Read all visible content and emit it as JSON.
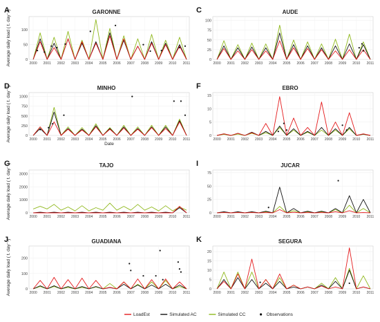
{
  "chart_data": [
    {
      "letter": "A",
      "title": "GARONNE",
      "type": "line",
      "ylabel": "Average daily load ( t. day⁻¹)",
      "xlabel": "",
      "yticks": [
        0,
        50,
        100
      ],
      "ylim": [
        0,
        145
      ],
      "x": [
        2000,
        2011
      ],
      "peaks": {
        "LoadEst": [
          0,
          60,
          0,
          40,
          0,
          70,
          0,
          60,
          0,
          55,
          0,
          80,
          0,
          70,
          0,
          45,
          0,
          55,
          0,
          50,
          0,
          45,
          0
        ],
        "Simulated AC": [
          0,
          70,
          0,
          55,
          0,
          70,
          0,
          55,
          0,
          60,
          0,
          90,
          0,
          65,
          0,
          45,
          0,
          60,
          0,
          55,
          0,
          50,
          0
        ],
        "Simulated CC": [
          0,
          90,
          0,
          75,
          0,
          95,
          0,
          65,
          0,
          135,
          0,
          105,
          0,
          80,
          0,
          70,
          0,
          85,
          0,
          65,
          0,
          75,
          0
        ]
      },
      "obs": [
        [
          2000.3,
          30
        ],
        [
          2000.8,
          25
        ],
        [
          2001.3,
          45
        ],
        [
          2001.7,
          40
        ],
        [
          2002.3,
          52
        ],
        [
          2004.1,
          95
        ],
        [
          2005.9,
          115
        ],
        [
          2007.9,
          50
        ],
        [
          2008.4,
          28
        ],
        [
          2009.2,
          30
        ],
        [
          2010.5,
          40
        ],
        [
          2010.9,
          45
        ]
      ]
    },
    {
      "letter": "C",
      "title": "AUDE",
      "type": "line",
      "ylabel": "",
      "xlabel": "",
      "yticks": [
        0,
        25,
        50,
        75,
        100
      ],
      "ylim": [
        0,
        110
      ],
      "x": [
        2000,
        2011
      ],
      "peaks": {
        "LoadEst": [
          0,
          28,
          0,
          22,
          0,
          25,
          0,
          22,
          0,
          48,
          0,
          30,
          0,
          28,
          0,
          25,
          0,
          22,
          0,
          25,
          0,
          25,
          0
        ],
        "Simulated AC": [
          0,
          35,
          0,
          30,
          0,
          32,
          0,
          30,
          0,
          68,
          0,
          38,
          0,
          35,
          0,
          30,
          0,
          35,
          0,
          40,
          0,
          38,
          0
        ],
        "Simulated CC": [
          0,
          48,
          0,
          38,
          0,
          42,
          0,
          40,
          0,
          88,
          0,
          50,
          0,
          45,
          0,
          40,
          0,
          52,
          0,
          65,
          0,
          45,
          0
        ]
      },
      "obs": [
        [
          2010.2,
          30
        ],
        [
          2010.4,
          40
        ],
        [
          2010.5,
          22
        ]
      ]
    },
    {
      "letter": "D",
      "title": "MINHO",
      "type": "line",
      "ylabel": "Average daily load ( t. day⁻¹)",
      "xlabel": "Date",
      "yticks": [
        0,
        250,
        500,
        750,
        1000
      ],
      "ylim": [
        0,
        1100
      ],
      "x": [
        2000,
        2011
      ],
      "peaks": {
        "LoadEst": [
          0,
          220,
          0,
          350,
          0,
          160,
          0,
          140,
          0,
          220,
          0,
          160,
          0,
          190,
          0,
          160,
          0,
          200,
          0,
          180,
          0,
          350,
          0
        ],
        "Simulated AC": [
          0,
          180,
          0,
          600,
          0,
          180,
          0,
          160,
          0,
          250,
          0,
          180,
          0,
          220,
          0,
          180,
          0,
          220,
          0,
          220,
          0,
          380,
          0
        ],
        "Simulated CC": [
          0,
          220,
          0,
          720,
          0,
          220,
          0,
          200,
          0,
          300,
          0,
          200,
          0,
          260,
          0,
          220,
          0,
          260,
          0,
          260,
          0,
          420,
          0
        ]
      },
      "obs": [
        [
          2000.5,
          150
        ],
        [
          2001.1,
          200
        ],
        [
          2001.4,
          300
        ],
        [
          2002.2,
          520
        ],
        [
          2007.1,
          1000
        ],
        [
          2010.1,
          880
        ],
        [
          2010.6,
          880
        ],
        [
          2010.9,
          520
        ]
      ]
    },
    {
      "letter": "F",
      "title": "EBRO",
      "type": "line",
      "ylabel": "",
      "xlabel": "",
      "yticks": [
        0,
        5,
        10,
        15
      ],
      "ylim": [
        0,
        16
      ],
      "x": [
        2000,
        2011
      ],
      "peaks": {
        "LoadEst": [
          0,
          0.6,
          0,
          0.8,
          0,
          1.0,
          0,
          4.5,
          0,
          14.5,
          0,
          6.5,
          0,
          3.0,
          0,
          12.5,
          0,
          5.0,
          0,
          8.5,
          0,
          0.6,
          0
        ],
        "Simulated AC": [
          0,
          0.6,
          0,
          0.8,
          0,
          1.2,
          0,
          1.5,
          0,
          3.5,
          0,
          2.5,
          0,
          1.5,
          0,
          3.0,
          0,
          2.5,
          0,
          3.0,
          0,
          0.5,
          0
        ],
        "Simulated CC": [
          0,
          0.4,
          0,
          0.5,
          0,
          0.8,
          0,
          1.0,
          0,
          3.0,
          0,
          2.0,
          0,
          1.2,
          0,
          2.0,
          0,
          2.0,
          0,
          2.5,
          0,
          0.4,
          0
        ]
      },
      "obs": [
        [
          2004.8,
          4.5
        ],
        [
          2009.0,
          3.8
        ],
        [
          2009.3,
          2.0
        ],
        [
          2005.0,
          2.0
        ],
        [
          2004.4,
          1.5
        ]
      ]
    },
    {
      "letter": "G",
      "title": "TAJO",
      "type": "line",
      "ylabel": "Average daily load ( t. day⁻¹)",
      "xlabel": "",
      "yticks": [
        0,
        1000,
        2000,
        3000
      ],
      "ylim": [
        0,
        3300
      ],
      "x": [
        2000,
        2011
      ],
      "peaks": {
        "LoadEst": [
          0,
          0,
          0,
          0,
          0,
          0,
          0,
          0,
          0,
          0,
          0,
          0,
          0,
          0,
          0,
          0,
          0,
          0,
          0,
          0,
          0,
          500,
          0
        ],
        "Simulated AC": [
          0,
          50,
          0,
          50,
          0,
          50,
          0,
          50,
          0,
          50,
          0,
          50,
          0,
          50,
          0,
          50,
          0,
          50,
          0,
          50,
          0,
          400,
          0
        ],
        "Simulated CC": [
          300,
          500,
          300,
          650,
          200,
          450,
          150,
          550,
          150,
          400,
          200,
          750,
          200,
          500,
          200,
          650,
          200,
          450,
          150,
          550,
          150,
          450,
          200
        ]
      },
      "obs": []
    },
    {
      "letter": "I",
      "title": "JUCAR",
      "type": "line",
      "ylabel": "",
      "xlabel": "",
      "yticks": [
        0,
        25,
        50,
        75
      ],
      "ylim": [
        0,
        80
      ],
      "x": [
        2000,
        2011
      ],
      "peaks": {
        "LoadEst": [
          0,
          0.5,
          0,
          0.5,
          0,
          0.5,
          0,
          0.5,
          0,
          6,
          0,
          1,
          0,
          0.5,
          0,
          0.5,
          0,
          2,
          0,
          4,
          0,
          0.5,
          0
        ],
        "Simulated AC": [
          0,
          2,
          0,
          2,
          0,
          2,
          0,
          3,
          0,
          48,
          0,
          8,
          0,
          3,
          0,
          3,
          0,
          8,
          0,
          32,
          0,
          25,
          0
        ],
        "Simulated CC": [
          0,
          1,
          0,
          1,
          0,
          1,
          0,
          2,
          0,
          12,
          0,
          4,
          0,
          2,
          0,
          2,
          0,
          6,
          0,
          14,
          0,
          8,
          0
        ]
      },
      "obs": [
        [
          2008.7,
          60
        ],
        [
          2003.7,
          10
        ]
      ]
    },
    {
      "letter": "J",
      "title": "GUADIANA",
      "type": "line",
      "ylabel": "Average daily load ( t. day⁻¹)",
      "xlabel": "",
      "yticks": [
        0,
        100,
        200
      ],
      "ylim": [
        0,
        280
      ],
      "x": [
        2000,
        2011
      ],
      "peaks": {
        "LoadEst": [
          0,
          55,
          0,
          75,
          0,
          60,
          0,
          70,
          0,
          55,
          0,
          10,
          0,
          45,
          0,
          65,
          0,
          60,
          0,
          65,
          0,
          45,
          0
        ],
        "Simulated AC": [
          0,
          20,
          0,
          20,
          0,
          15,
          0,
          15,
          0,
          15,
          0,
          8,
          0,
          30,
          0,
          25,
          0,
          25,
          0,
          30,
          0,
          25,
          0
        ],
        "Simulated CC": [
          0,
          15,
          0,
          15,
          0,
          10,
          0,
          10,
          0,
          12,
          0,
          35,
          0,
          45,
          0,
          30,
          0,
          45,
          0,
          55,
          0,
          15,
          0
        ]
      },
      "obs": [
        [
          2006.9,
          165
        ],
        [
          2007.0,
          120
        ],
        [
          2007.9,
          85
        ],
        [
          2008.8,
          85
        ],
        [
          2009.1,
          250
        ],
        [
          2009.3,
          60
        ],
        [
          2010.4,
          175
        ],
        [
          2010.5,
          130
        ],
        [
          2010.6,
          110
        ]
      ]
    },
    {
      "letter": "K",
      "title": "SEGURA",
      "type": "line",
      "ylabel": "",
      "xlabel": "",
      "yticks": [
        0,
        5,
        10,
        15,
        20
      ],
      "ylim": [
        0,
        23
      ],
      "x": [
        2000,
        2011
      ],
      "peaks": {
        "LoadEst": [
          0,
          4,
          0,
          8,
          0,
          16,
          0,
          5,
          0,
          8,
          0,
          2,
          0,
          1,
          0,
          1.5,
          0,
          1,
          0,
          22,
          0,
          1,
          0
        ],
        "Simulated AC": [
          0,
          5,
          0,
          6,
          0,
          5,
          0,
          3,
          0,
          4,
          0,
          1,
          0,
          1,
          0,
          2,
          0,
          4,
          0,
          10,
          0,
          1,
          0
        ],
        "Simulated CC": [
          0,
          9,
          0,
          9,
          0,
          9,
          0,
          5,
          0,
          6,
          0,
          2,
          0,
          1,
          0,
          3,
          0,
          6,
          0,
          11,
          0,
          7,
          0
        ]
      },
      "obs": [
        [
          2003.1,
          3.5
        ],
        [
          2009.5,
          3.0
        ]
      ]
    }
  ],
  "xticks": [
    "2000",
    "2001",
    "2002",
    "2003",
    "2004",
    "2005",
    "2006",
    "2007",
    "2008",
    "2009",
    "2010",
    "2011"
  ],
  "date_label": "Date",
  "legend": [
    {
      "name": "LoadEst",
      "color": "#e41a1c",
      "kind": "line"
    },
    {
      "name": "Simulated AC",
      "color": "#111111",
      "kind": "line"
    },
    {
      "name": "Simulated CC",
      "color": "#8fb81c",
      "kind": "line"
    },
    {
      "name": "Observations",
      "color": "#111111",
      "kind": "dot"
    }
  ]
}
